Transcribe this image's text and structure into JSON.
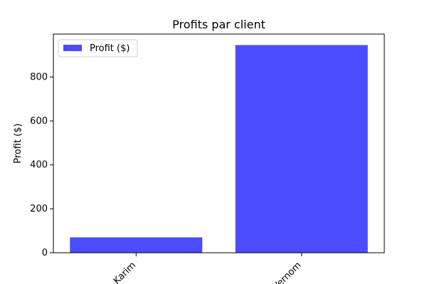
{
  "chart_data": {
    "type": "bar",
    "title": "Profits par client",
    "xlabel": "",
    "ylabel": "Profit ($)",
    "categories": [
      "Karim",
      "Vernom"
    ],
    "series": [
      {
        "name": "Profit ($)",
        "values": [
          70,
          945
        ],
        "color": "#4b4bff"
      }
    ],
    "ylim": [
      0,
      995
    ],
    "yticks": [
      0,
      200,
      400,
      600,
      800
    ],
    "grid": false,
    "legend_position": "upper-left",
    "xtick_rotation": 45
  }
}
